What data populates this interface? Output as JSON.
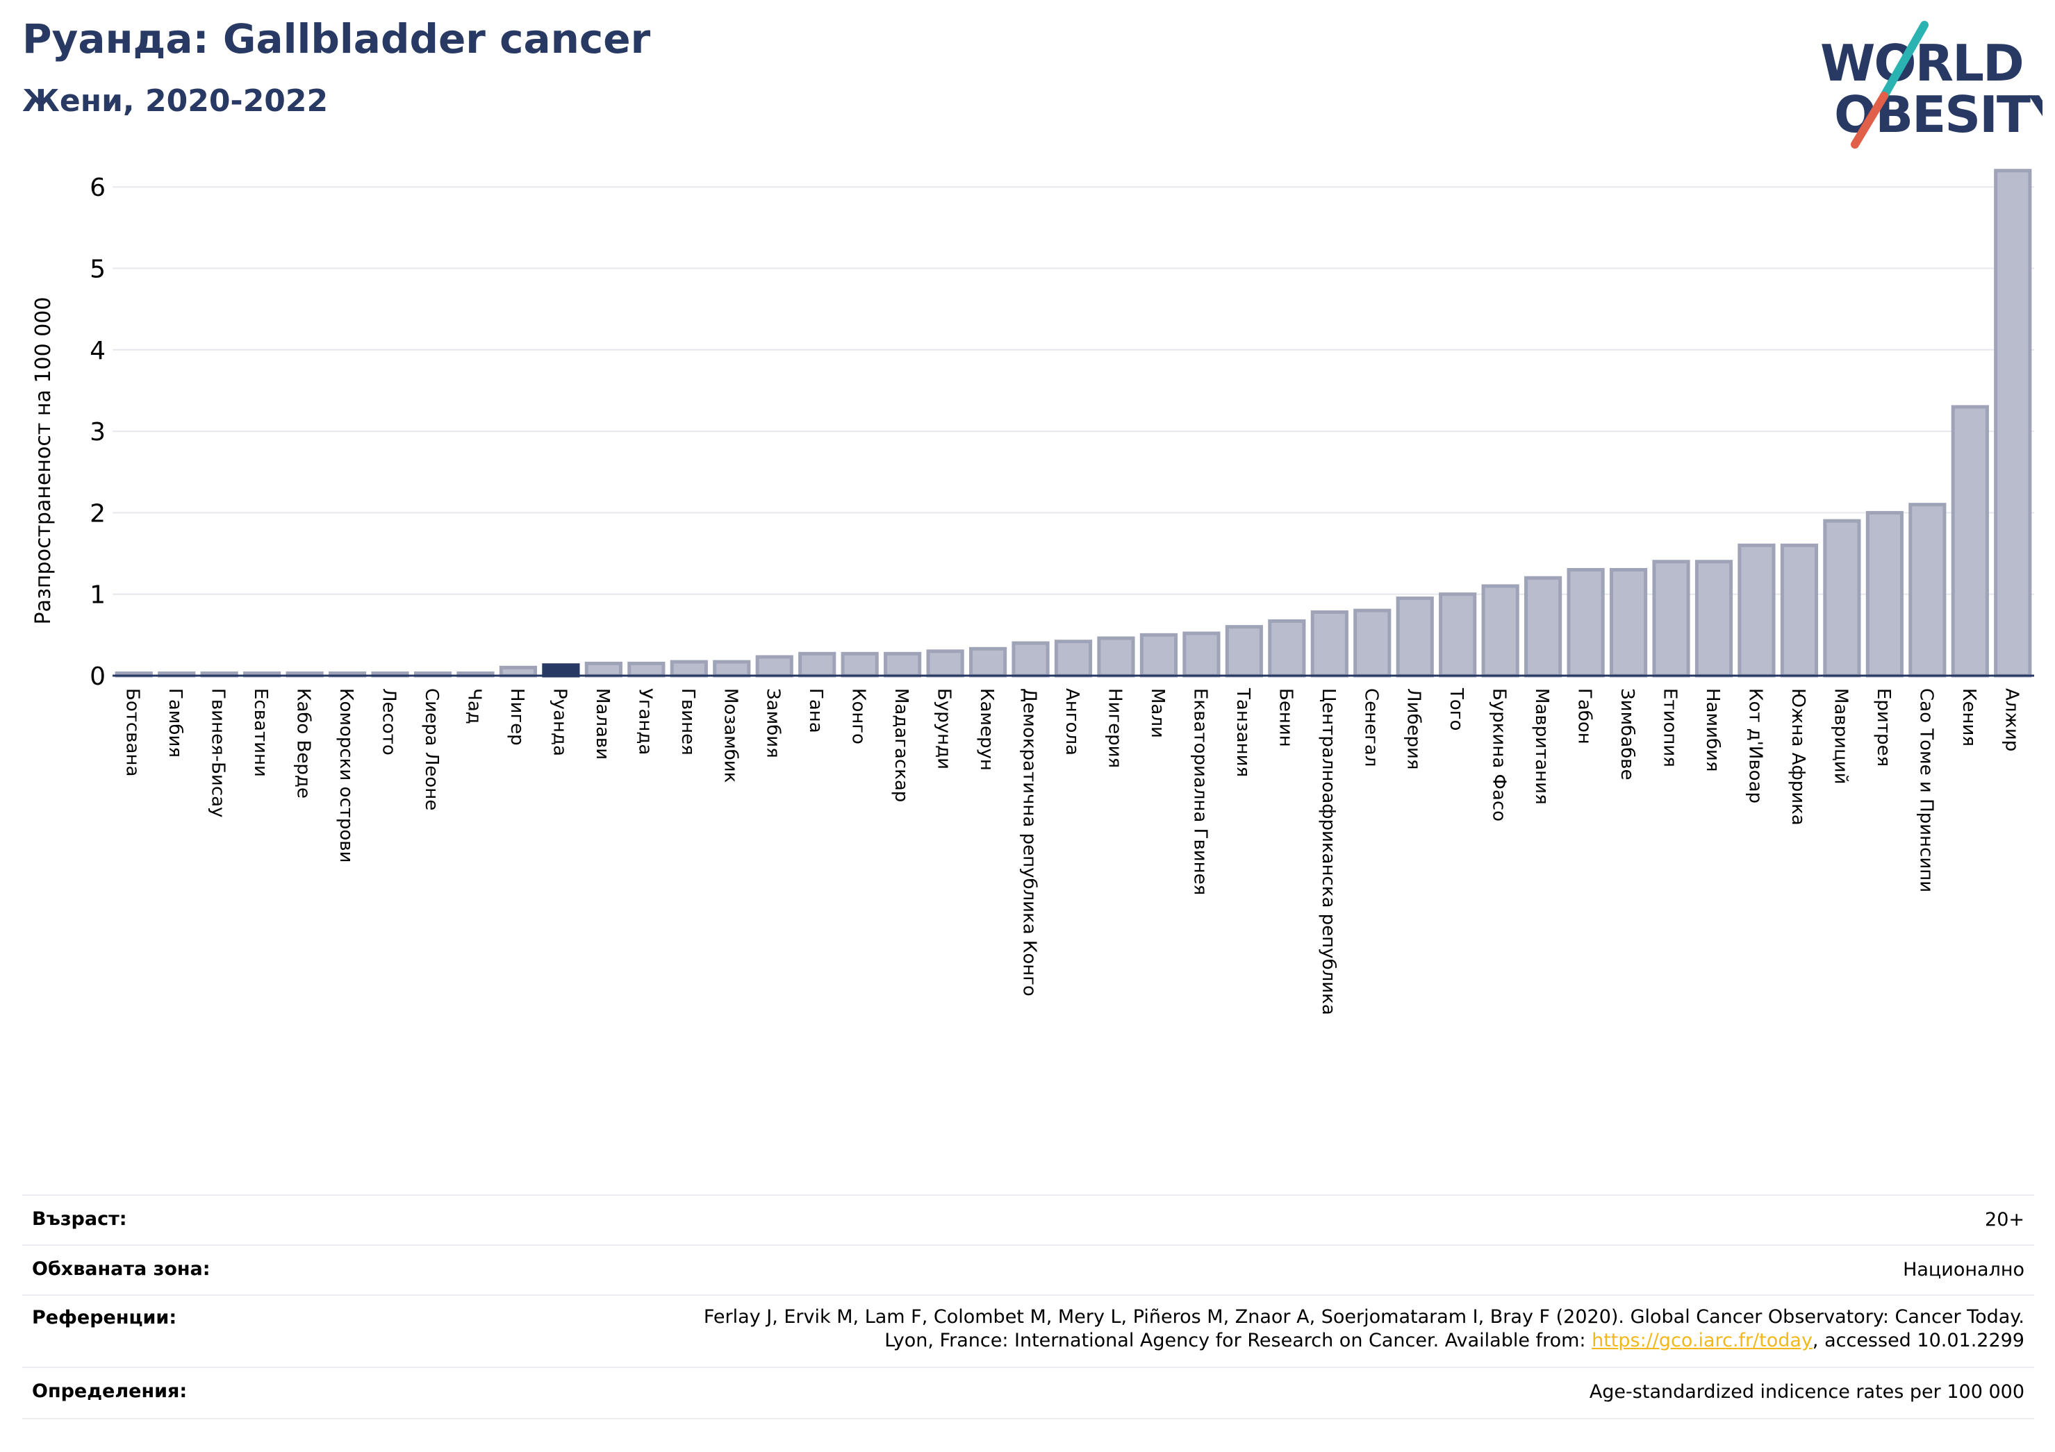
{
  "header": {
    "title": "Руанда: Gallbladder cancer",
    "subtitle": "Жени, 2020-2022"
  },
  "logo": {
    "line1": "WORLD",
    "line2": "OBESITY",
    "colors": {
      "text": "#283a64",
      "slash_teal": "#2bb3b1",
      "slash_red": "#e0604a"
    }
  },
  "chart_data": {
    "type": "bar",
    "ylabel": "Разпространеност  на 100 000",
    "ylim": [
      0,
      6.3
    ],
    "yticks": [
      0,
      1,
      2,
      3,
      4,
      5,
      6
    ],
    "grid": true,
    "highlight": "Руанда",
    "colors": {
      "bar": "#b8bccc",
      "bar_edge": "#9ea3b8",
      "highlight": "#283a64"
    },
    "categories": [
      "Ботсвана",
      "Гамбия",
      "Гвинея-Бисау",
      "Есватини",
      "Кабо Верде",
      "Коморски острови",
      "Лесото",
      "Сиера Леоне",
      "Чад",
      "Нигер",
      "Руанда",
      "Малави",
      "Уганда",
      "Гвинея",
      "Мозамбик",
      "Замбия",
      "Гана",
      "Конго",
      "Мадагаскар",
      "Бурунди",
      "Камерун",
      "Демократична република Конго",
      "Ангола",
      "Нигерия",
      "Мали",
      "Екваториална Гвинея",
      "Танзания",
      "Бенин",
      "Централноафриканска република",
      "Сенегал",
      "Либерия",
      "Того",
      "Буркина Фасо",
      "Мавритания",
      "Габон",
      "Зимбабве",
      "Етиопия",
      "Намибия",
      "Кот д'Ивоар",
      "Южна Африка",
      "Мавриций",
      "Еритрея",
      "Сао Томе и Принсипи",
      "Кения",
      "Алжир"
    ],
    "values": [
      0.03,
      0.03,
      0.03,
      0.03,
      0.03,
      0.03,
      0.03,
      0.03,
      0.03,
      0.1,
      0.13,
      0.15,
      0.15,
      0.17,
      0.17,
      0.23,
      0.27,
      0.27,
      0.27,
      0.3,
      0.33,
      0.4,
      0.42,
      0.46,
      0.5,
      0.52,
      0.6,
      0.67,
      0.78,
      0.8,
      0.95,
      1.0,
      1.1,
      1.2,
      1.3,
      1.3,
      1.4,
      1.4,
      1.6,
      1.6,
      1.9,
      2.0,
      2.1,
      3.3,
      6.2
    ]
  },
  "info": {
    "age_label": "Възраст:",
    "age_value": "20+",
    "area_label": "Обхваната зона:",
    "area_value": "Национално",
    "ref_label": "Референции:",
    "ref_line1": "Ferlay J, Ervik M, Lam F, Colombet M, Mery L, Piñeros M, Znaor A, Soerjomataram I, Bray F (2020). Global Cancer Observatory: Cancer Today.",
    "ref_line2_pre": "Lyon, France: International Agency for Research on Cancer. Available from: ",
    "ref_link": "https://gco.iarc.fr/today",
    "ref_line2_post": ", accessed 10.01.2299",
    "def_label": "Определения:",
    "def_value": "Age-standardized indicence rates per 100 000"
  }
}
